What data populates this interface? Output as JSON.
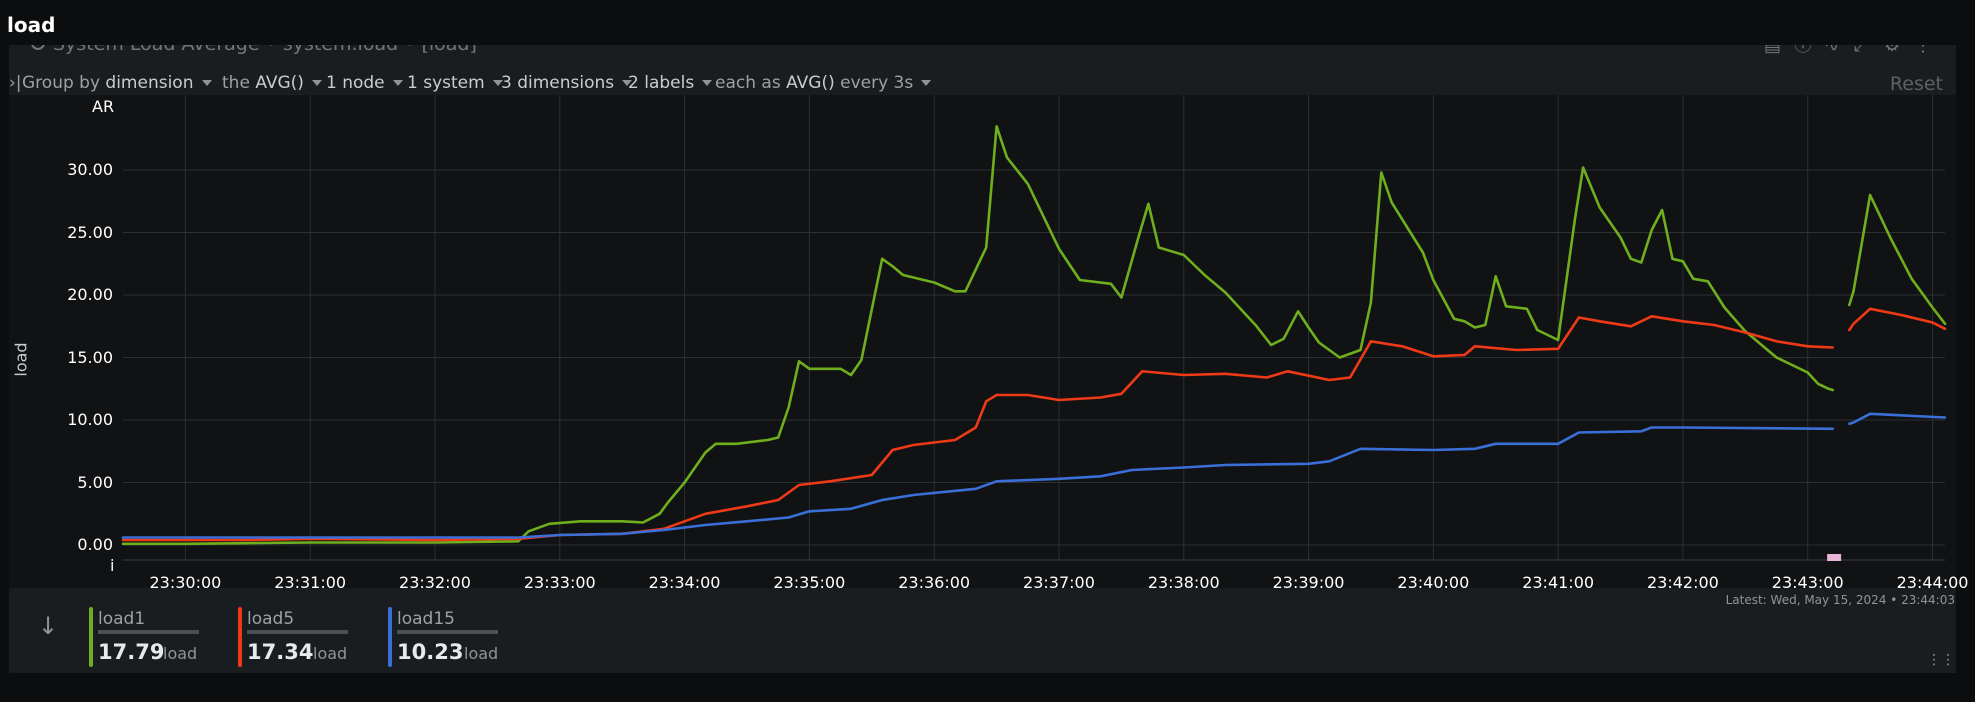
{
  "page": {
    "title": "load"
  },
  "card": {
    "title": "System Load Average • system.load • [load]",
    "reset_label": "Reset",
    "icons": [
      "report-icon",
      "info-icon",
      "trend-icon",
      "expand-icon",
      "settings-icon",
      "more-icon"
    ]
  },
  "toolbar": {
    "group_prefix": "Group by",
    "group_value": "dimension",
    "agg_prefix": "the",
    "agg_value": "AVG()",
    "nodes": "1 node",
    "systems": "1 system",
    "dimensions": "3 dimensions",
    "labels": "2 labels",
    "each_prefix": "each as",
    "each_value": "AVG()",
    "every": "every 3s"
  },
  "latest": "Latest:  Wed, May 15, 2024 • 23:44:03",
  "legend": [
    {
      "name": "load1",
      "value": "17.79",
      "unit": "load",
      "color": "#6fae1c"
    },
    {
      "name": "load5",
      "value": "17.34",
      "unit": "load",
      "color": "#f03a17"
    },
    {
      "name": "load15",
      "value": "10.23",
      "unit": "load",
      "color": "#3a6fd8"
    }
  ],
  "chart_data": {
    "type": "line",
    "ylabel": "load",
    "corner_top": "AR",
    "corner_bottom": "i",
    "ylim": [
      -1.2,
      36.0
    ],
    "xlim": [
      "23:29:30",
      "23:44:06"
    ],
    "yticks": [
      "0.00",
      "5.00",
      "10.00",
      "15.00",
      "20.00",
      "25.00",
      "30.00"
    ],
    "xticks": [
      "23:30:00",
      "23:31:00",
      "23:32:00",
      "23:33:00",
      "23:34:00",
      "23:35:00",
      "23:36:00",
      "23:37:00",
      "23:38:00",
      "23:39:00",
      "23:40:00",
      "23:41:00",
      "23:42:00",
      "23:43:00",
      "23:44:00"
    ],
    "grid": true,
    "gap": [
      "23:43:05",
      "23:43:12"
    ],
    "series": [
      {
        "name": "load1",
        "color": "#6fae1c",
        "points": [
          [
            "23:29:30",
            0.1
          ],
          [
            "23:30:00",
            0.1
          ],
          [
            "23:31:00",
            0.2
          ],
          [
            "23:32:00",
            0.2
          ],
          [
            "23:32:40",
            0.3
          ],
          [
            "23:32:45",
            1.1
          ],
          [
            "23:32:55",
            1.7
          ],
          [
            "23:33:10",
            1.9
          ],
          [
            "23:33:30",
            1.9
          ],
          [
            "23:33:40",
            1.8
          ],
          [
            "23:33:48",
            2.5
          ],
          [
            "23:33:52",
            3.4
          ],
          [
            "23:34:00",
            5.0
          ],
          [
            "23:34:10",
            7.4
          ],
          [
            "23:34:15",
            8.1
          ],
          [
            "23:34:25",
            8.1
          ],
          [
            "23:34:40",
            8.4
          ],
          [
            "23:34:45",
            8.6
          ],
          [
            "23:34:50",
            11.0
          ],
          [
            "23:34:55",
            14.7
          ],
          [
            "23:35:00",
            14.1
          ],
          [
            "23:35:15",
            14.1
          ],
          [
            "23:35:20",
            13.6
          ],
          [
            "23:35:25",
            14.8
          ],
          [
            "23:35:35",
            22.9
          ],
          [
            "23:35:40",
            22.3
          ],
          [
            "23:35:45",
            21.6
          ],
          [
            "23:36:00",
            21.0
          ],
          [
            "23:36:10",
            20.3
          ],
          [
            "23:36:15",
            20.3
          ],
          [
            "23:36:25",
            23.8
          ],
          [
            "23:36:30",
            33.5
          ],
          [
            "23:36:35",
            31.0
          ],
          [
            "23:36:45",
            28.9
          ],
          [
            "23:37:00",
            23.7
          ],
          [
            "23:37:10",
            21.2
          ],
          [
            "23:37:25",
            20.9
          ],
          [
            "23:37:30",
            19.8
          ],
          [
            "23:37:38",
            24.5
          ],
          [
            "23:37:43",
            27.3
          ],
          [
            "23:37:48",
            23.8
          ],
          [
            "23:38:00",
            23.2
          ],
          [
            "23:38:10",
            21.6
          ],
          [
            "23:38:20",
            20.2
          ],
          [
            "23:38:35",
            17.5
          ],
          [
            "23:38:42",
            16.0
          ],
          [
            "23:38:48",
            16.5
          ],
          [
            "23:38:55",
            18.7
          ],
          [
            "23:39:00",
            17.4
          ],
          [
            "23:39:05",
            16.2
          ],
          [
            "23:39:15",
            15.0
          ],
          [
            "23:39:25",
            15.6
          ],
          [
            "23:39:30",
            19.4
          ],
          [
            "23:39:35",
            29.8
          ],
          [
            "23:39:40",
            27.4
          ],
          [
            "23:39:55",
            23.4
          ],
          [
            "23:40:00",
            21.2
          ],
          [
            "23:40:10",
            18.1
          ],
          [
            "23:40:15",
            17.9
          ],
          [
            "23:40:20",
            17.4
          ],
          [
            "23:40:25",
            17.6
          ],
          [
            "23:40:30",
            21.5
          ],
          [
            "23:40:35",
            19.1
          ],
          [
            "23:40:45",
            18.9
          ],
          [
            "23:40:50",
            17.2
          ],
          [
            "23:41:00",
            16.4
          ],
          [
            "23:41:08",
            26.0
          ],
          [
            "23:41:12",
            30.2
          ],
          [
            "23:41:20",
            27.0
          ],
          [
            "23:41:30",
            24.6
          ],
          [
            "23:41:35",
            22.9
          ],
          [
            "23:41:40",
            22.6
          ],
          [
            "23:41:45",
            25.2
          ],
          [
            "23:41:50",
            26.8
          ],
          [
            "23:41:55",
            22.9
          ],
          [
            "23:42:00",
            22.7
          ],
          [
            "23:42:05",
            21.3
          ],
          [
            "23:42:12",
            21.1
          ],
          [
            "23:42:20",
            19.0
          ],
          [
            "23:42:30",
            17.1
          ],
          [
            "23:42:45",
            15.0
          ],
          [
            "23:43:00",
            13.8
          ],
          [
            "23:43:05",
            12.9
          ],
          [
            "23:43:10",
            12.5
          ],
          [
            "23:43:12",
            12.4
          ],
          null,
          [
            "23:43:20",
            19.2
          ],
          [
            "23:43:22",
            20.3
          ],
          [
            "23:43:30",
            28.0
          ],
          [
            "23:43:40",
            24.5
          ],
          [
            "23:43:50",
            21.3
          ],
          [
            "23:44:00",
            19.0
          ],
          [
            "23:44:06",
            17.7
          ]
        ]
      },
      {
        "name": "load5",
        "color": "#f03a17",
        "points": [
          [
            "23:29:30",
            0.4
          ],
          [
            "23:30:00",
            0.4
          ],
          [
            "23:30:30",
            0.4
          ],
          [
            "23:31:00",
            0.5
          ],
          [
            "23:32:00",
            0.4
          ],
          [
            "23:32:40",
            0.5
          ],
          [
            "23:33:00",
            0.8
          ],
          [
            "23:33:30",
            0.9
          ],
          [
            "23:33:50",
            1.3
          ],
          [
            "23:34:10",
            2.5
          ],
          [
            "23:34:30",
            3.1
          ],
          [
            "23:34:45",
            3.6
          ],
          [
            "23:34:55",
            4.8
          ],
          [
            "23:35:10",
            5.1
          ],
          [
            "23:35:30",
            5.6
          ],
          [
            "23:35:40",
            7.6
          ],
          [
            "23:35:50",
            8.0
          ],
          [
            "23:36:10",
            8.4
          ],
          [
            "23:36:20",
            9.4
          ],
          [
            "23:36:25",
            11.5
          ],
          [
            "23:36:30",
            12.0
          ],
          [
            "23:36:45",
            12.0
          ],
          [
            "23:37:00",
            11.6
          ],
          [
            "23:37:20",
            11.8
          ],
          [
            "23:37:30",
            12.1
          ],
          [
            "23:37:40",
            13.9
          ],
          [
            "23:38:00",
            13.6
          ],
          [
            "23:38:20",
            13.7
          ],
          [
            "23:38:40",
            13.4
          ],
          [
            "23:38:50",
            13.9
          ],
          [
            "23:39:10",
            13.2
          ],
          [
            "23:39:20",
            13.4
          ],
          [
            "23:39:30",
            16.3
          ],
          [
            "23:39:45",
            15.9
          ],
          [
            "23:40:00",
            15.1
          ],
          [
            "23:40:15",
            15.2
          ],
          [
            "23:40:20",
            15.9
          ],
          [
            "23:40:40",
            15.6
          ],
          [
            "23:41:00",
            15.7
          ],
          [
            "23:41:10",
            18.2
          ],
          [
            "23:41:20",
            17.9
          ],
          [
            "23:41:35",
            17.5
          ],
          [
            "23:41:45",
            18.3
          ],
          [
            "23:42:00",
            17.9
          ],
          [
            "23:42:15",
            17.6
          ],
          [
            "23:42:30",
            17.0
          ],
          [
            "23:42:45",
            16.3
          ],
          [
            "23:43:00",
            15.9
          ],
          [
            "23:43:12",
            15.8
          ],
          null,
          [
            "23:43:20",
            17.2
          ],
          [
            "23:43:22",
            17.7
          ],
          [
            "23:43:30",
            18.9
          ],
          [
            "23:43:45",
            18.4
          ],
          [
            "23:44:00",
            17.8
          ],
          [
            "23:44:06",
            17.3
          ]
        ]
      },
      {
        "name": "load15",
        "color": "#3a6fd8",
        "points": [
          [
            "23:29:30",
            0.6
          ],
          [
            "23:30:00",
            0.6
          ],
          [
            "23:31:00",
            0.6
          ],
          [
            "23:32:00",
            0.6
          ],
          [
            "23:32:40",
            0.6
          ],
          [
            "23:33:00",
            0.8
          ],
          [
            "23:33:30",
            0.9
          ],
          [
            "23:33:50",
            1.2
          ],
          [
            "23:34:10",
            1.6
          ],
          [
            "23:34:30",
            1.9
          ],
          [
            "23:34:50",
            2.2
          ],
          [
            "23:35:00",
            2.7
          ],
          [
            "23:35:20",
            2.9
          ],
          [
            "23:35:35",
            3.6
          ],
          [
            "23:35:50",
            4.0
          ],
          [
            "23:36:20",
            4.5
          ],
          [
            "23:36:30",
            5.1
          ],
          [
            "23:37:00",
            5.3
          ],
          [
            "23:37:20",
            5.5
          ],
          [
            "23:37:35",
            6.0
          ],
          [
            "23:38:00",
            6.2
          ],
          [
            "23:38:20",
            6.4
          ],
          [
            "23:39:00",
            6.5
          ],
          [
            "23:39:10",
            6.7
          ],
          [
            "23:39:25",
            7.7
          ],
          [
            "23:40:00",
            7.6
          ],
          [
            "23:40:20",
            7.7
          ],
          [
            "23:40:30",
            8.1
          ],
          [
            "23:41:00",
            8.1
          ],
          [
            "23:41:10",
            9.0
          ],
          [
            "23:41:40",
            9.1
          ],
          [
            "23:41:45",
            9.4
          ],
          [
            "23:42:00",
            9.4
          ],
          [
            "23:43:12",
            9.3
          ],
          null,
          [
            "23:43:20",
            9.7
          ],
          [
            "23:43:22",
            9.8
          ],
          [
            "23:43:30",
            10.5
          ],
          [
            "23:44:06",
            10.2
          ]
        ]
      }
    ]
  }
}
